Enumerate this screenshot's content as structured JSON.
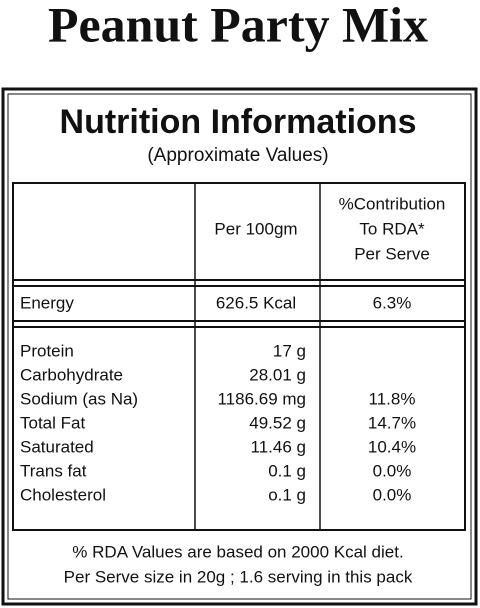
{
  "title": "Peanut Party Mix",
  "panel": {
    "heading": "Nutrition Informations",
    "subheading": "(Approximate Values)"
  },
  "table": {
    "header": {
      "per_100": "Per 100gm",
      "rda": [
        "%Contribution",
        "To RDA*",
        "Per Serve"
      ]
    },
    "energy": {
      "name": "Energy",
      "per_100": "626.5 Kcal",
      "rda": "6.3%"
    },
    "nutrients": [
      {
        "name": "Protein",
        "per_100": "17 g"
      },
      {
        "name": "Carbohydrate",
        "per_100": "28.01 g"
      },
      {
        "name": "Sodium (as Na)",
        "per_100": "1186.69 mg",
        "rda": "11.8%"
      },
      {
        "name": "Total Fat",
        "per_100": "49.52 g",
        "rda": "14.7%"
      },
      {
        "name": "Saturated",
        "per_100": "11.46 g",
        "rda": "10.4%"
      },
      {
        "name": "Trans fat",
        "per_100": "0.1 g",
        "rda": "0.0%"
      },
      {
        "name": "Cholesterol",
        "per_100": "o.1 g",
        "rda": "0.0%"
      }
    ]
  },
  "footer": [
    "% RDA Values are based on 2000 Kcal diet.",
    "Per Serve size in 20g ; 1.6 serving in this pack"
  ]
}
